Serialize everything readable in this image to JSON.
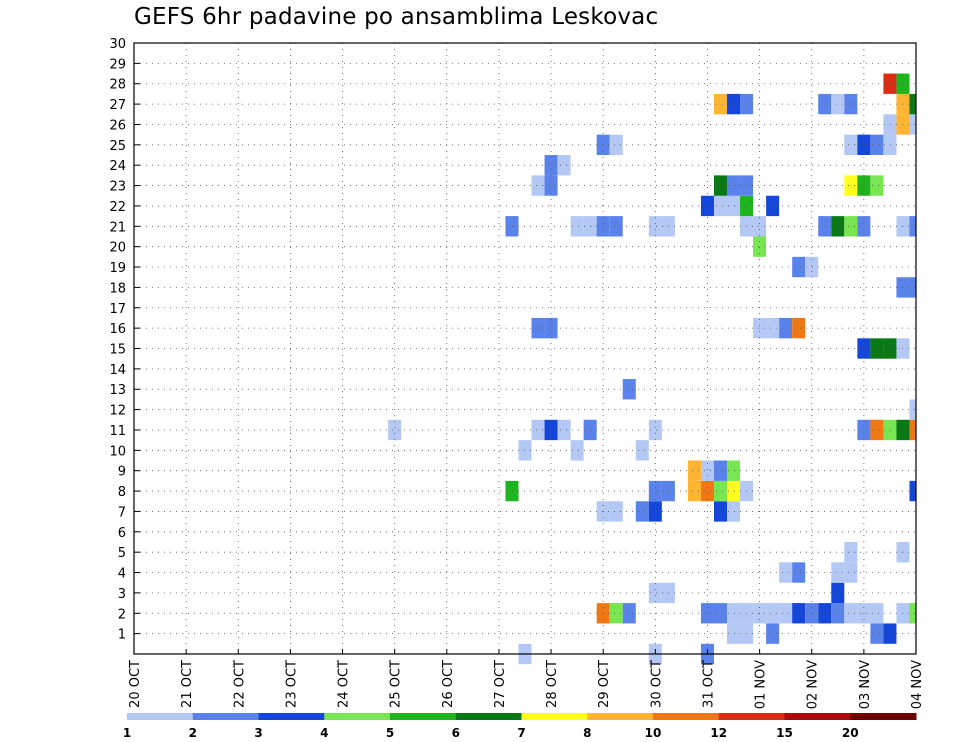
{
  "chart_data": {
    "type": "heatmap",
    "title": "GEFS 6hr padavine po ansamblima Leskovac",
    "x_tick_labels": [
      "20 OCT",
      "21 OCT",
      "22 OCT",
      "23 OCT",
      "24 OCT",
      "25 OCT",
      "26 OCT",
      "27 OCT",
      "28 OCT",
      "29 OCT",
      "30 OCT",
      "31 OCT",
      "01 NOV",
      "02 NOV",
      "03 NOV",
      "04 NOV"
    ],
    "y_tick_labels": [
      "1",
      "2",
      "3",
      "4",
      "5",
      "6",
      "7",
      "8",
      "9",
      "10",
      "11",
      "12",
      "13",
      "14",
      "15",
      "16",
      "17",
      "18",
      "19",
      "20",
      "21",
      "22",
      "23",
      "24",
      "25",
      "26",
      "27",
      "28",
      "29",
      "30"
    ],
    "x_unit": "6-hour step from 20 OCT 00Z",
    "xlim": [
      0,
      60
    ],
    "ylim": [
      0,
      30
    ],
    "grid": true,
    "color_levels": [
      1,
      2,
      3,
      4,
      5,
      6,
      7,
      8,
      10,
      12,
      15,
      20
    ],
    "level_labels": [
      "1",
      "2",
      "3",
      "4",
      "5",
      "6",
      "7",
      "8",
      "10",
      "12",
      "15",
      "20"
    ],
    "colors": [
      "#b4c8f5",
      "#5a82eb",
      "#1446dc",
      "#78e650",
      "#1eb41e",
      "#0a7814",
      "#ffff1e",
      "#ffb432",
      "#f07814",
      "#dc2d14",
      "#aa0a0a",
      "#6e0000"
    ],
    "cells": [
      {
        "x": 30,
        "y": 0,
        "c": 1
      },
      {
        "x": 40,
        "y": 0,
        "c": 1
      },
      {
        "x": 44,
        "y": 0,
        "c": 2
      },
      {
        "x": 46,
        "y": 1,
        "c": 1
      },
      {
        "x": 47,
        "y": 1,
        "c": 1
      },
      {
        "x": 49,
        "y": 1,
        "c": 2
      },
      {
        "x": 57,
        "y": 1,
        "c": 2
      },
      {
        "x": 58,
        "y": 1,
        "c": 3
      },
      {
        "x": 36,
        "y": 2,
        "c": 9
      },
      {
        "x": 37,
        "y": 2,
        "c": 4
      },
      {
        "x": 38,
        "y": 2,
        "c": 2
      },
      {
        "x": 44,
        "y": 2,
        "c": 2
      },
      {
        "x": 45,
        "y": 2,
        "c": 2
      },
      {
        "x": 46,
        "y": 2,
        "c": 1
      },
      {
        "x": 47,
        "y": 2,
        "c": 1
      },
      {
        "x": 48,
        "y": 2,
        "c": 1
      },
      {
        "x": 49,
        "y": 2,
        "c": 1
      },
      {
        "x": 50,
        "y": 2,
        "c": 1
      },
      {
        "x": 51,
        "y": 2,
        "c": 3
      },
      {
        "x": 52,
        "y": 2,
        "c": 2
      },
      {
        "x": 53,
        "y": 2,
        "c": 3
      },
      {
        "x": 54,
        "y": 2,
        "c": 2
      },
      {
        "x": 55,
        "y": 2,
        "c": 1
      },
      {
        "x": 56,
        "y": 2,
        "c": 1
      },
      {
        "x": 57,
        "y": 2,
        "c": 1
      },
      {
        "x": 59,
        "y": 2,
        "c": 1
      },
      {
        "x": 60,
        "y": 2,
        "c": 4
      },
      {
        "x": 40,
        "y": 3,
        "c": 1
      },
      {
        "x": 41,
        "y": 3,
        "c": 1
      },
      {
        "x": 54,
        "y": 3,
        "c": 3
      },
      {
        "x": 50,
        "y": 4,
        "c": 1
      },
      {
        "x": 51,
        "y": 4,
        "c": 2
      },
      {
        "x": 54,
        "y": 4,
        "c": 1
      },
      {
        "x": 55,
        "y": 4,
        "c": 1
      },
      {
        "x": 55,
        "y": 5,
        "c": 1
      },
      {
        "x": 59,
        "y": 5,
        "c": 1
      },
      {
        "x": 36,
        "y": 7,
        "c": 1
      },
      {
        "x": 37,
        "y": 7,
        "c": 1
      },
      {
        "x": 39,
        "y": 7,
        "c": 2
      },
      {
        "x": 40,
        "y": 7,
        "c": 3
      },
      {
        "x": 45,
        "y": 7,
        "c": 3
      },
      {
        "x": 46,
        "y": 7,
        "c": 1
      },
      {
        "x": 29,
        "y": 8,
        "c": 5
      },
      {
        "x": 40,
        "y": 8,
        "c": 2
      },
      {
        "x": 41,
        "y": 8,
        "c": 2
      },
      {
        "x": 43,
        "y": 8,
        "c": 8
      },
      {
        "x": 44,
        "y": 8,
        "c": 9
      },
      {
        "x": 45,
        "y": 8,
        "c": 4
      },
      {
        "x": 46,
        "y": 8,
        "c": 7
      },
      {
        "x": 47,
        "y": 8,
        "c": 1
      },
      {
        "x": 60,
        "y": 8,
        "c": 3
      },
      {
        "x": 43,
        "y": 9,
        "c": 8
      },
      {
        "x": 44,
        "y": 9,
        "c": 1
      },
      {
        "x": 45,
        "y": 9,
        "c": 2
      },
      {
        "x": 46,
        "y": 9,
        "c": 4
      },
      {
        "x": 30,
        "y": 10,
        "c": 1
      },
      {
        "x": 34,
        "y": 10,
        "c": 1
      },
      {
        "x": 39,
        "y": 10,
        "c": 1
      },
      {
        "x": 20,
        "y": 11,
        "c": 1
      },
      {
        "x": 31,
        "y": 11,
        "c": 1
      },
      {
        "x": 32,
        "y": 11,
        "c": 3
      },
      {
        "x": 33,
        "y": 11,
        "c": 1
      },
      {
        "x": 35,
        "y": 11,
        "c": 2
      },
      {
        "x": 40,
        "y": 11,
        "c": 1
      },
      {
        "x": 56,
        "y": 11,
        "c": 2
      },
      {
        "x": 57,
        "y": 11,
        "c": 9
      },
      {
        "x": 58,
        "y": 11,
        "c": 4
      },
      {
        "x": 59,
        "y": 11,
        "c": 6
      },
      {
        "x": 60,
        "y": 11,
        "c": 9
      },
      {
        "x": 60,
        "y": 12,
        "c": 1
      },
      {
        "x": 38,
        "y": 13,
        "c": 2
      },
      {
        "x": 56,
        "y": 15,
        "c": 3
      },
      {
        "x": 57,
        "y": 15,
        "c": 6
      },
      {
        "x": 58,
        "y": 15,
        "c": 6
      },
      {
        "x": 59,
        "y": 15,
        "c": 1
      },
      {
        "x": 31,
        "y": 16,
        "c": 2
      },
      {
        "x": 32,
        "y": 16,
        "c": 2
      },
      {
        "x": 48,
        "y": 16,
        "c": 1
      },
      {
        "x": 49,
        "y": 16,
        "c": 1
      },
      {
        "x": 50,
        "y": 16,
        "c": 2
      },
      {
        "x": 51,
        "y": 16,
        "c": 9
      },
      {
        "x": 59,
        "y": 18,
        "c": 2
      },
      {
        "x": 60,
        "y": 18,
        "c": 2
      },
      {
        "x": 51,
        "y": 19,
        "c": 2
      },
      {
        "x": 52,
        "y": 19,
        "c": 1
      },
      {
        "x": 48,
        "y": 20,
        "c": 4
      },
      {
        "x": 29,
        "y": 21,
        "c": 2
      },
      {
        "x": 34,
        "y": 21,
        "c": 1
      },
      {
        "x": 35,
        "y": 21,
        "c": 1
      },
      {
        "x": 36,
        "y": 21,
        "c": 2
      },
      {
        "x": 37,
        "y": 21,
        "c": 2
      },
      {
        "x": 40,
        "y": 21,
        "c": 1
      },
      {
        "x": 41,
        "y": 21,
        "c": 1
      },
      {
        "x": 47,
        "y": 21,
        "c": 1
      },
      {
        "x": 48,
        "y": 21,
        "c": 1
      },
      {
        "x": 53,
        "y": 21,
        "c": 2
      },
      {
        "x": 54,
        "y": 21,
        "c": 6
      },
      {
        "x": 55,
        "y": 21,
        "c": 4
      },
      {
        "x": 56,
        "y": 21,
        "c": 2
      },
      {
        "x": 59,
        "y": 21,
        "c": 1
      },
      {
        "x": 60,
        "y": 21,
        "c": 2
      },
      {
        "x": 44,
        "y": 22,
        "c": 3
      },
      {
        "x": 45,
        "y": 22,
        "c": 1
      },
      {
        "x": 46,
        "y": 22,
        "c": 1
      },
      {
        "x": 47,
        "y": 22,
        "c": 5
      },
      {
        "x": 49,
        "y": 22,
        "c": 3
      },
      {
        "x": 31,
        "y": 23,
        "c": 1
      },
      {
        "x": 32,
        "y": 23,
        "c": 2
      },
      {
        "x": 45,
        "y": 23,
        "c": 6
      },
      {
        "x": 46,
        "y": 23,
        "c": 2
      },
      {
        "x": 47,
        "y": 23,
        "c": 2
      },
      {
        "x": 55,
        "y": 23,
        "c": 7
      },
      {
        "x": 56,
        "y": 23,
        "c": 5
      },
      {
        "x": 57,
        "y": 23,
        "c": 4
      },
      {
        "x": 32,
        "y": 24,
        "c": 2
      },
      {
        "x": 33,
        "y": 24,
        "c": 1
      },
      {
        "x": 36,
        "y": 25,
        "c": 2
      },
      {
        "x": 37,
        "y": 25,
        "c": 1
      },
      {
        "x": 55,
        "y": 25,
        "c": 1
      },
      {
        "x": 56,
        "y": 25,
        "c": 3
      },
      {
        "x": 57,
        "y": 25,
        "c": 2
      },
      {
        "x": 58,
        "y": 25,
        "c": 1
      },
      {
        "x": 58,
        "y": 26,
        "c": 1
      },
      {
        "x": 59,
        "y": 26,
        "c": 8
      },
      {
        "x": 60,
        "y": 26,
        "c": 1
      },
      {
        "x": 45,
        "y": 27,
        "c": 8
      },
      {
        "x": 46,
        "y": 27,
        "c": 3
      },
      {
        "x": 47,
        "y": 27,
        "c": 2
      },
      {
        "x": 53,
        "y": 27,
        "c": 2
      },
      {
        "x": 54,
        "y": 27,
        "c": 1
      },
      {
        "x": 55,
        "y": 27,
        "c": 2
      },
      {
        "x": 59,
        "y": 27,
        "c": 8
      },
      {
        "x": 60,
        "y": 27,
        "c": 6
      },
      {
        "x": 58,
        "y": 28,
        "c": 10
      },
      {
        "x": 59,
        "y": 28,
        "c": 5
      }
    ]
  }
}
